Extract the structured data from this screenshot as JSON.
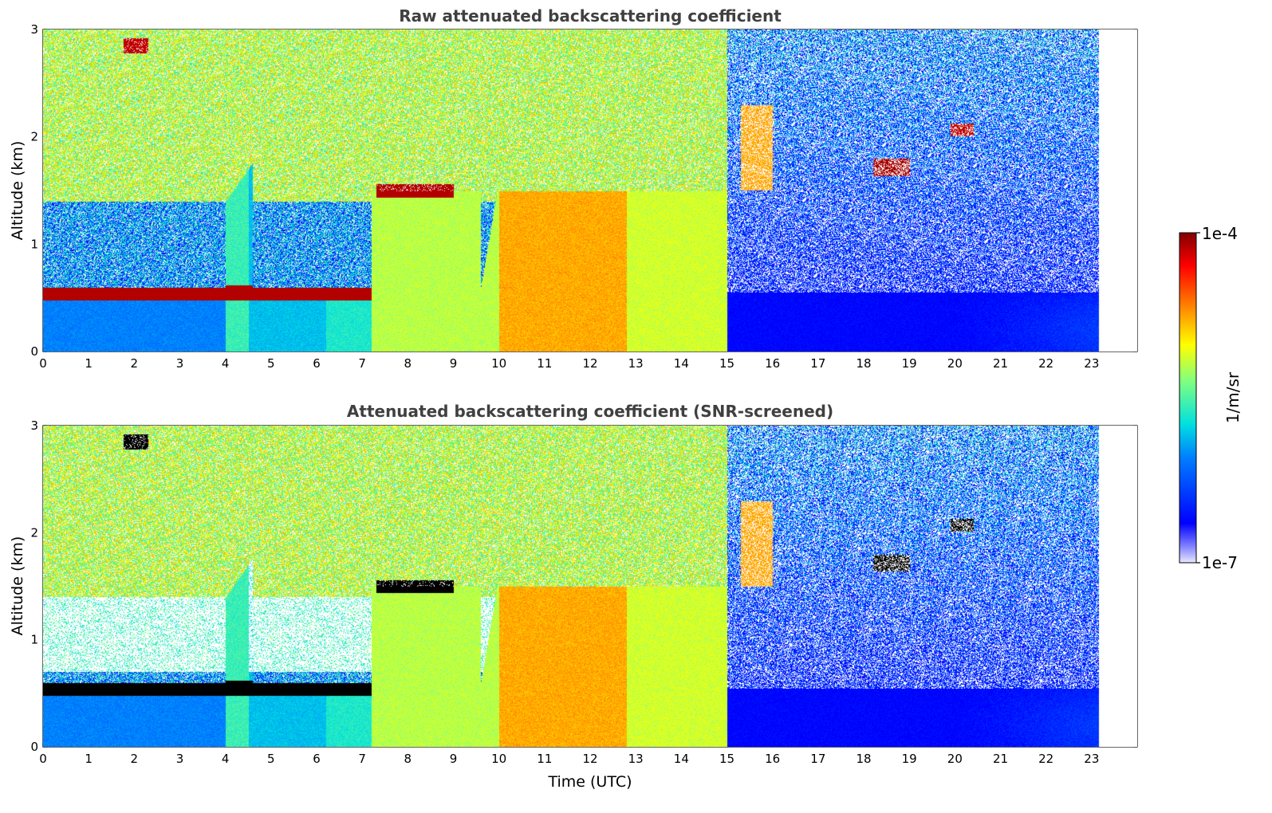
{
  "chart_data": [
    {
      "type": "heatmap",
      "title": "Raw attenuated backscattering coefficient",
      "xlabel": "",
      "ylabel": "Altitude (km)",
      "xlim": [
        0,
        24
      ],
      "ylim": [
        0,
        3
      ],
      "xticks": [
        "0",
        "1",
        "2",
        "3",
        "4",
        "5",
        "6",
        "7",
        "8",
        "9",
        "10",
        "11",
        "12",
        "13",
        "14",
        "15",
        "16",
        "17",
        "18",
        "19",
        "20",
        "21",
        "22",
        "23"
      ],
      "yticks": [
        "0",
        "1",
        "2",
        "3"
      ],
      "data_end_time": 23.15,
      "colorscale": "jet",
      "features": [
        {
          "label": "boundary layer top",
          "t_start": 0,
          "t_end": 7.2,
          "altitude_km": 0.55,
          "value": "1e-4"
        },
        {
          "label": "aerosol plume",
          "t_start": 7.2,
          "t_end": 15.0,
          "altitude_km": [
            0,
            1.6
          ]
        },
        {
          "label": "elevated cloud",
          "t_start": 18.2,
          "t_end": 19.0,
          "altitude_km": 1.72
        },
        {
          "label": "cloud",
          "t_start": 19.9,
          "t_end": 20.4,
          "altitude_km": 2.07
        },
        {
          "label": "cloud",
          "t_start": 1.75,
          "t_end": 2.3,
          "altitude_km": 2.85
        }
      ]
    },
    {
      "type": "heatmap",
      "title": "Attenuated backscattering coefficient (SNR-screened)",
      "xlabel": "Time (UTC)",
      "ylabel": "Altitude (km)",
      "xlim": [
        0,
        24
      ],
      "ylim": [
        0,
        3
      ],
      "xticks": [
        "0",
        "1",
        "2",
        "3",
        "4",
        "5",
        "6",
        "7",
        "8",
        "9",
        "10",
        "11",
        "12",
        "13",
        "14",
        "15",
        "16",
        "17",
        "18",
        "19",
        "20",
        "21",
        "22",
        "23"
      ],
      "yticks": [
        "0",
        "1",
        "2",
        "3"
      ],
      "data_end_time": 23.15,
      "colorscale": "jet",
      "screened": true
    }
  ],
  "colorbar": {
    "label": "1/m/sr",
    "max_label": "1e-4",
    "min_label": "1e-7",
    "scale": "log"
  }
}
